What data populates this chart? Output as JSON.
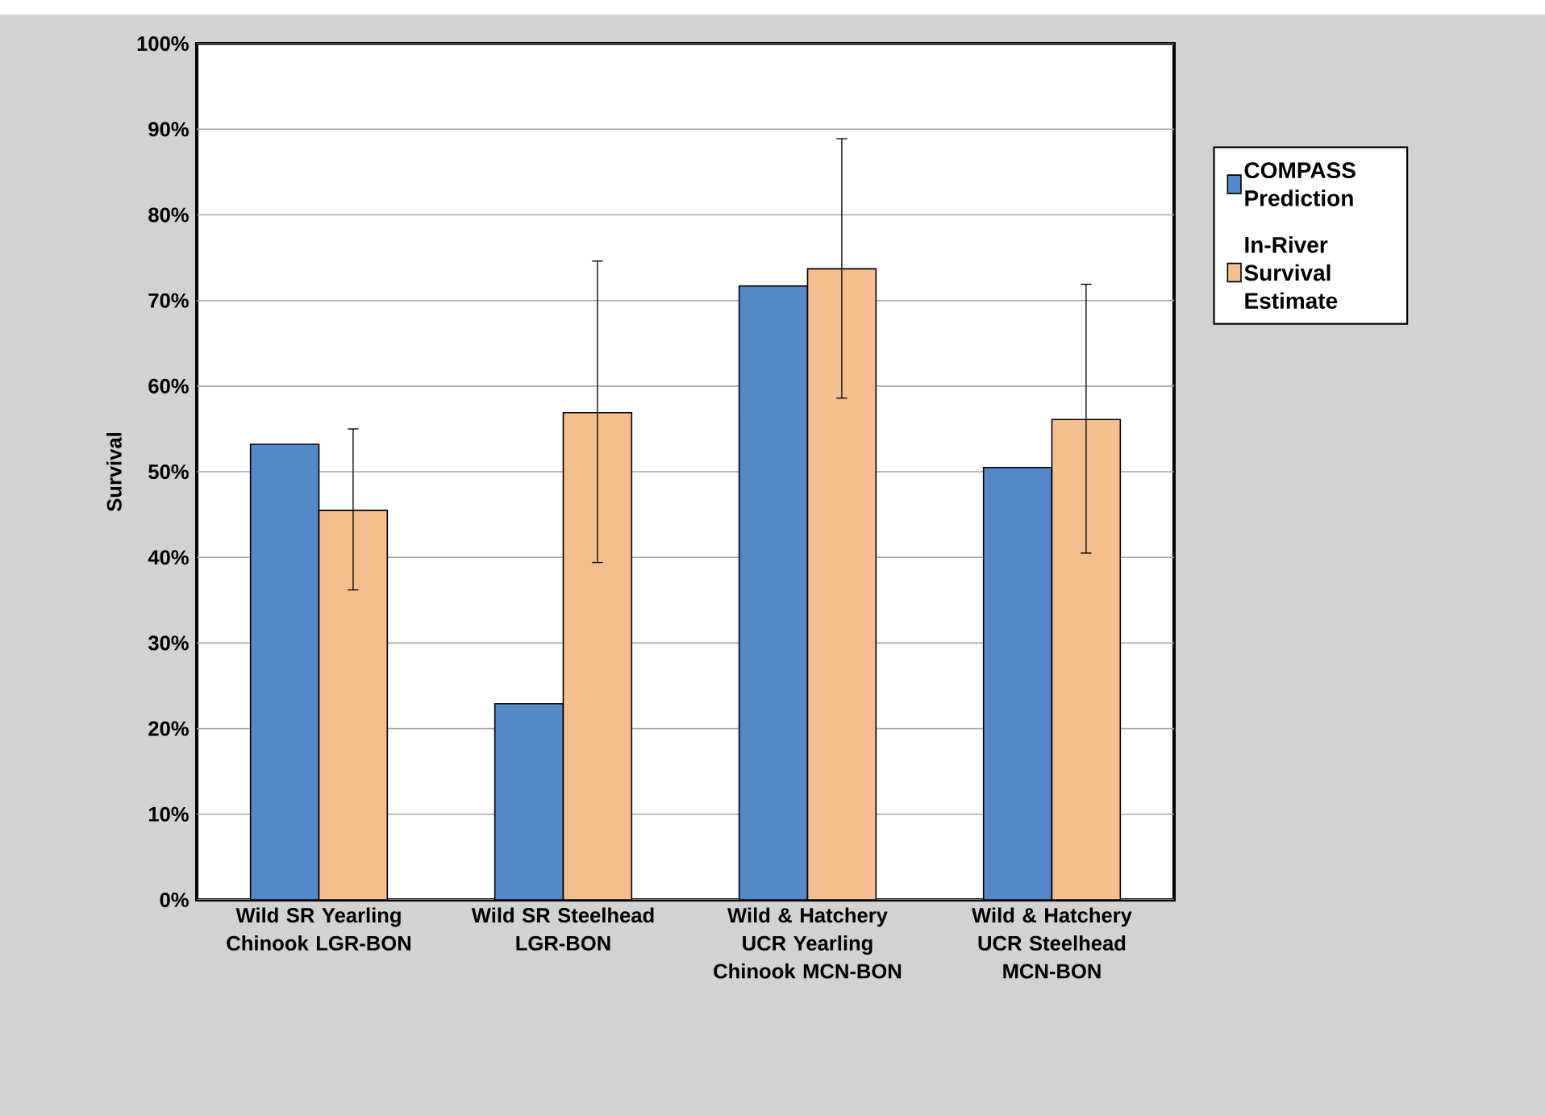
{
  "chart_data": {
    "type": "bar",
    "ylabel": "Survival",
    "categories": [
      "Wild SR Yearling Chinook LGR-BON",
      "Wild SR Steelhead LGR-BON",
      "Wild & Hatchery UCR Yearling Chinook MCN-BON",
      "Wild & Hatchery UCR Steelhead MCN-BON"
    ],
    "series": [
      {
        "name": "COMPASS Prediction",
        "color": "#5588c8",
        "values": [
          53.2,
          22.9,
          71.7,
          50.5
        ]
      },
      {
        "name": "In-River Survival Estimate",
        "color": "#f4bf8f",
        "values": [
          45.5,
          56.9,
          73.7,
          56.1
        ],
        "errors": [
          [
            36.2,
            55.0
          ],
          [
            39.4,
            74.6
          ],
          [
            58.6,
            88.9
          ],
          [
            40.5,
            71.9
          ]
        ]
      }
    ],
    "ylim": [
      0,
      100
    ],
    "yticks": [
      {
        "value": 0,
        "label": "0%"
      },
      {
        "value": 10,
        "label": "10%"
      },
      {
        "value": 20,
        "label": "20%"
      },
      {
        "value": 30,
        "label": "30%"
      },
      {
        "value": 40,
        "label": "40%"
      },
      {
        "value": 50,
        "label": "50%"
      },
      {
        "value": 60,
        "label": "60%"
      },
      {
        "value": 70,
        "label": "70%"
      },
      {
        "value": 80,
        "label": "80%"
      },
      {
        "value": 90,
        "label": "90%"
      },
      {
        "value": 100,
        "label": "100%"
      }
    ],
    "grid": "y",
    "legend": "right"
  }
}
